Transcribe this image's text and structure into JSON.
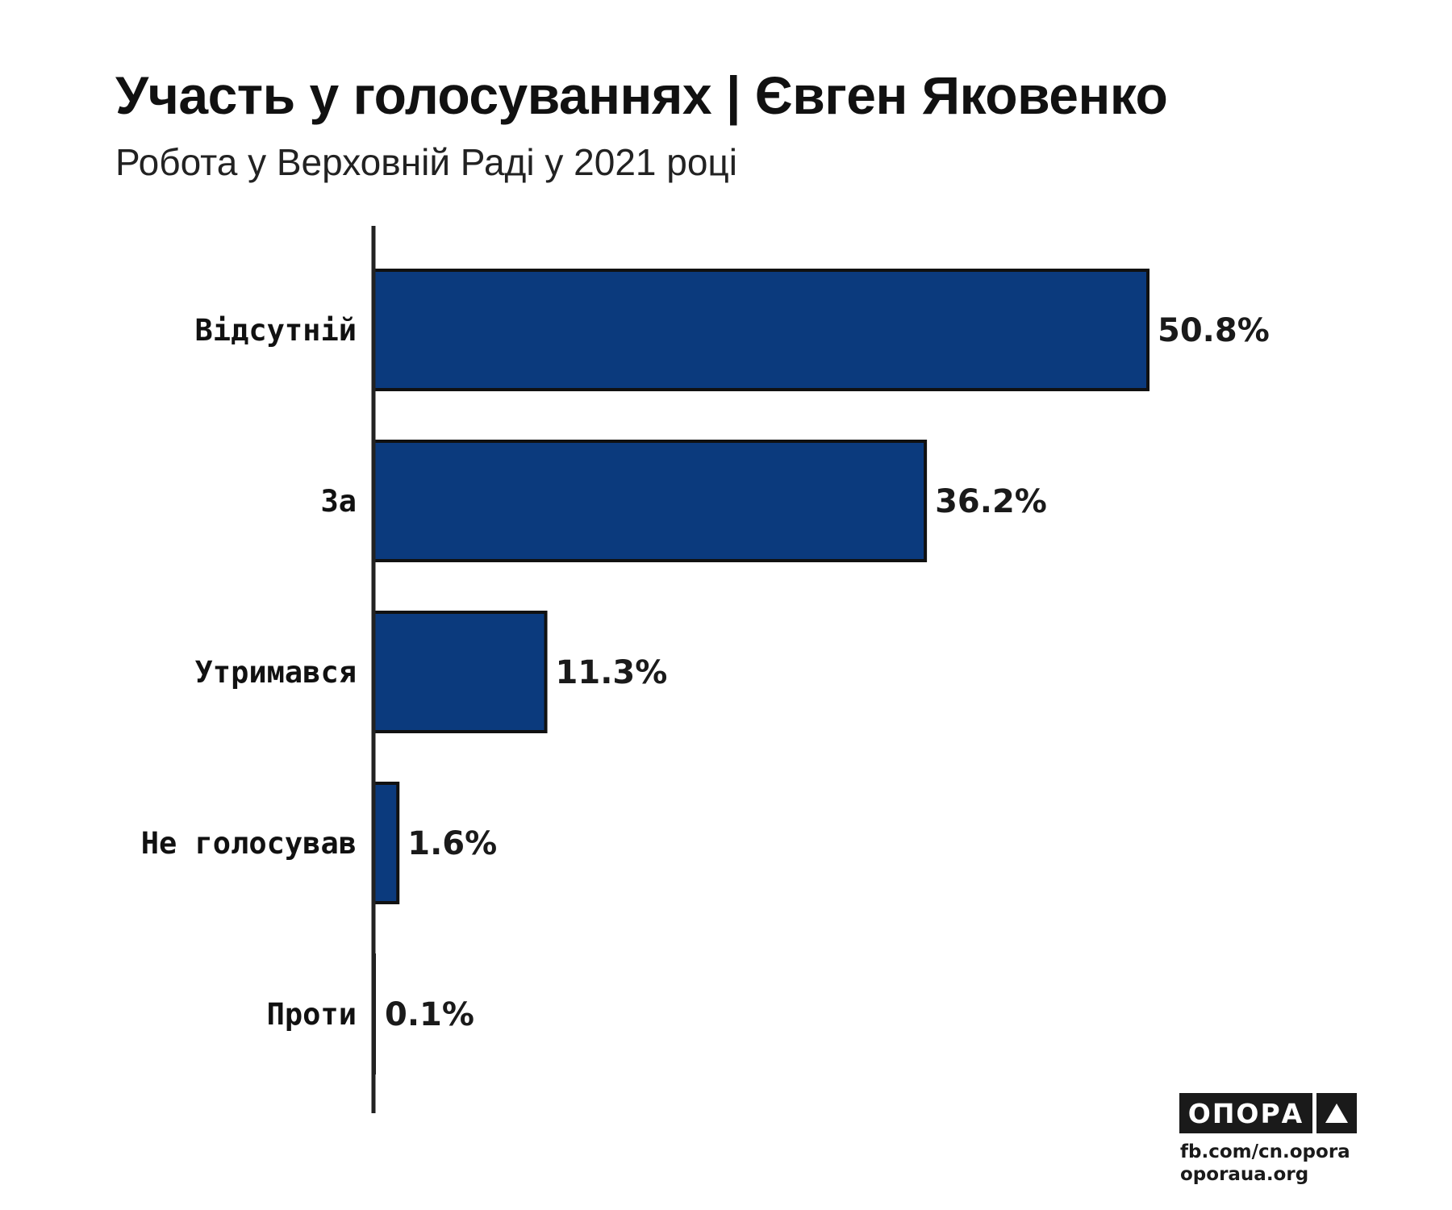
{
  "colors": {
    "bar_fill": "#0b3a7d",
    "bar_stroke": "#111111",
    "axis": "#222222",
    "text": "#111111"
  },
  "chart_data": {
    "type": "bar",
    "orientation": "horizontal",
    "title": "Участь у голосуваннях | Євген Яковенко",
    "subtitle": "Робота у Верховній Раді у 2021 році",
    "categories": [
      "Відсутній",
      "За",
      "Утримався",
      "Не голосував",
      "Проти"
    ],
    "values": [
      50.8,
      36.2,
      11.3,
      1.6,
      0.1
    ],
    "value_labels": [
      "50.8%",
      "36.2%",
      "11.3%",
      "1.6%",
      "0.1%"
    ],
    "unit": "%",
    "xlim": [
      0,
      50.8
    ],
    "grid": false,
    "legend": "none"
  },
  "branding": {
    "logo_text": "ОПОРА",
    "logo_icon": "triangle-icon",
    "facebook": "fb.com/cn.opora",
    "website": "oporaua.org"
  }
}
